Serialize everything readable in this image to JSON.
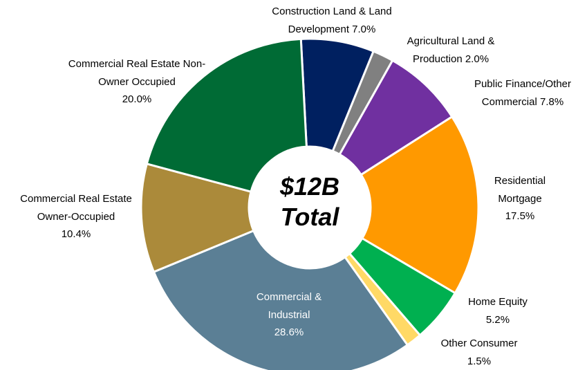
{
  "chart_data": {
    "type": "donut",
    "categories": [
      "Construction Land & Land Development",
      "Agricultural Land & Production",
      "Public Finance/Other Commercial",
      "Residential Mortgage",
      "Home Equity",
      "Other Consumer",
      "Commercial & Industrial",
      "Commercial Real Estate Owner-Occupied",
      "Commercial Real Estate Non-Owner Occupied"
    ],
    "values": [
      7.0,
      2.0,
      7.8,
      17.5,
      5.2,
      1.5,
      28.6,
      10.4,
      20.0
    ],
    "value_labels": [
      "7.0%",
      "2.0%",
      "7.8%",
      "17.5%",
      "5.2%",
      "1.5%",
      "28.6%",
      "10.4%",
      "20.0%"
    ],
    "colors": [
      "#002060",
      "#808080",
      "#7030a0",
      "#ff9900",
      "#00b050",
      "#ffd966",
      "#5b7f95",
      "#ab8a3a",
      "#006b35"
    ],
    "center_text": [
      "$12B",
      "Total"
    ]
  }
}
